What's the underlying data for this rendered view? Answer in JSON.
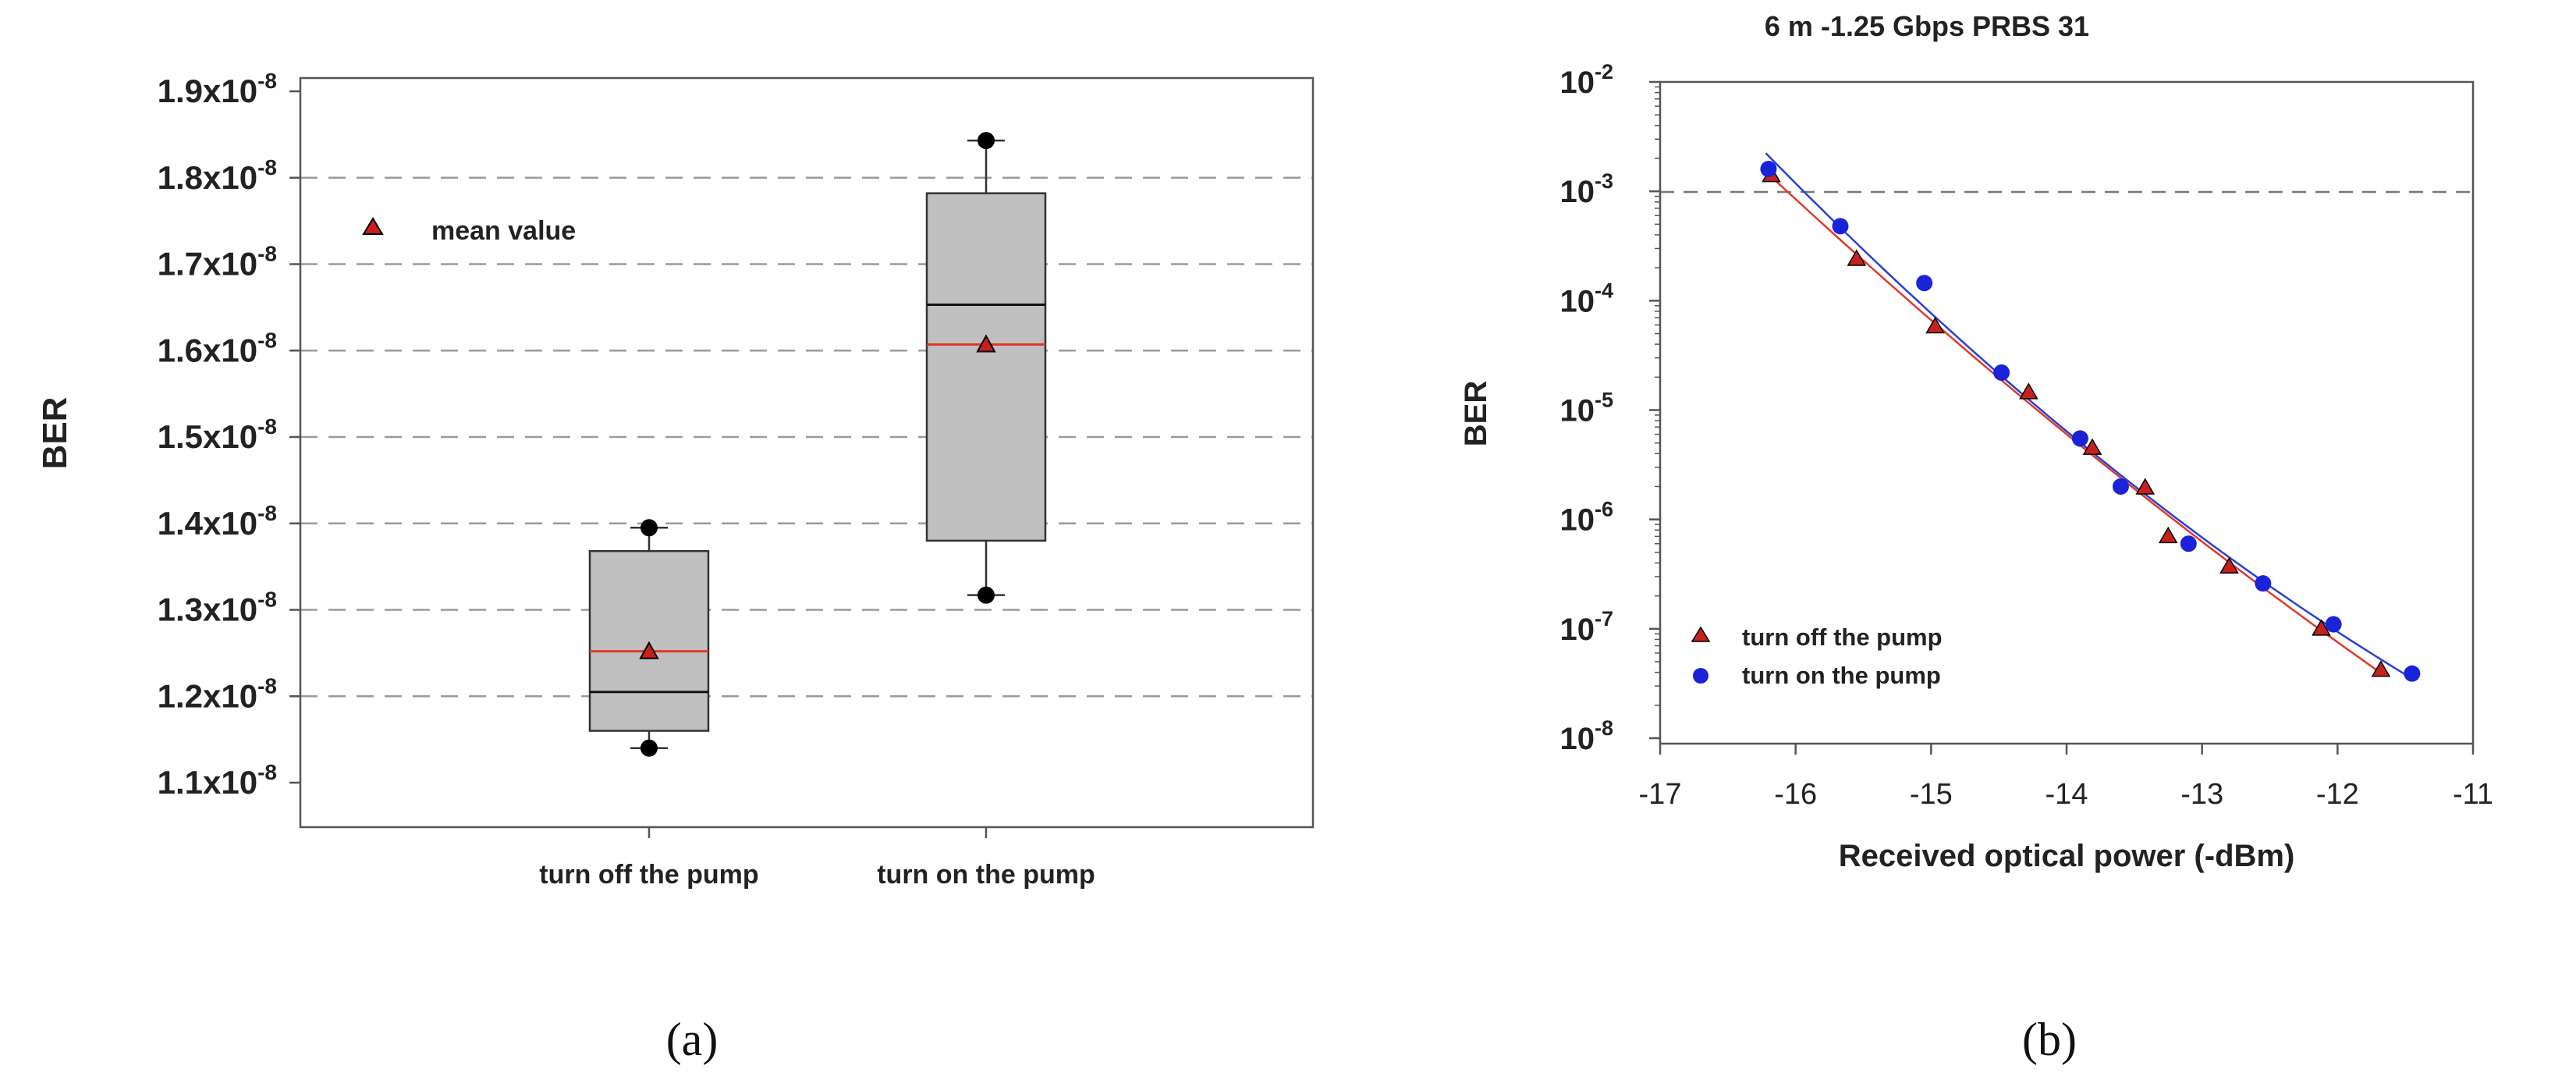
{
  "colors": {
    "box_fill": "#c0c0c0",
    "grid_dash": "#9a9a9a",
    "mean_line": "#e0392b",
    "marker_red": "#c8201c",
    "marker_blue": "#1a23d8",
    "fit_red": "#e0392b",
    "fit_blue": "#2a3fd6",
    "outlier": "#000000"
  },
  "panel_a": {
    "caption": "(a)",
    "ylabel": "BER",
    "legend_label": "mean value",
    "tick_mantissas": [
      "1.1x10",
      "1.2x10",
      "1.3x10",
      "1.4x10",
      "1.5x10",
      "1.6x10",
      "1.7x10",
      "1.8x10",
      "1.9x10"
    ],
    "tick_exponent": "-8",
    "categories": [
      "turn off the pump",
      "turn on the pump"
    ]
  },
  "panel_b": {
    "caption": "(b)",
    "title": "6 m -1.25 Gbps PRBS 31",
    "xlabel": "Received optical power (-dBm)",
    "ylabel": "BER",
    "x_ticks": [
      "-17",
      "-16",
      "-15",
      "-14",
      "-13",
      "-12",
      "-11"
    ],
    "y_tick_base": "10",
    "y_tick_exponents": [
      "-8",
      "-7",
      "-6",
      "-5",
      "-4",
      "-3",
      "-2"
    ],
    "legend": [
      "turn off the pump",
      "turn on the pump"
    ]
  },
  "chart_data": [
    {
      "type": "box",
      "ylabel": "BER",
      "ylim": [
        1.1e-08,
        1.9e-08
      ],
      "grid": "dashed horizontal",
      "legend_position": "top-left",
      "categories": [
        "turn off the pump",
        "turn on the pump"
      ],
      "boxes": [
        {
          "q1": 1.16e-08,
          "median": 1.205e-08,
          "q3": 1.368e-08,
          "whisker_low": 1.14e-08,
          "whisker_high": 1.395e-08,
          "mean": 1.252e-08,
          "outliers": [
            1.14e-08,
            1.395e-08
          ]
        },
        {
          "q1": 1.38e-08,
          "median": 1.653e-08,
          "q3": 1.782e-08,
          "whisker_low": 1.317e-08,
          "whisker_high": 1.843e-08,
          "mean": 1.607e-08,
          "outliers": [
            1.317e-08,
            1.843e-08
          ]
        }
      ]
    },
    {
      "type": "scatter",
      "title": "6 m -1.25 Gbps PRBS 31",
      "xlabel": "Received optical power (-dBm)",
      "ylabel": "BER",
      "xlim": [
        -17,
        -11
      ],
      "ylim": [
        1e-08,
        0.01
      ],
      "y_scale": "log",
      "reference_line_y": 0.001,
      "legend_position": "bottom-left",
      "series": [
        {
          "name": "turn off the pump",
          "marker": "triangle",
          "x": [
            -16.18,
            -15.55,
            -14.97,
            -14.28,
            -13.81,
            -13.42,
            -13.25,
            -12.8,
            -12.12,
            -11.68
          ],
          "y": [
            0.0014,
            0.00024,
            5.8e-05,
            1.45e-05,
            4.5e-06,
            1.95e-06,
            7e-07,
            3.7e-07,
            1e-07,
            4.2e-08
          ]
        },
        {
          "name": "turn on the pump",
          "marker": "circle",
          "x": [
            -16.2,
            -15.67,
            -15.05,
            -14.48,
            -13.9,
            -13.6,
            -13.1,
            -12.55,
            -12.03,
            -11.45
          ],
          "y": [
            0.0016,
            0.00048,
            0.000145,
            2.2e-05,
            5.5e-06,
            2e-06,
            6e-07,
            2.6e-07,
            1.1e-07,
            3.9e-08
          ]
        }
      ]
    }
  ]
}
